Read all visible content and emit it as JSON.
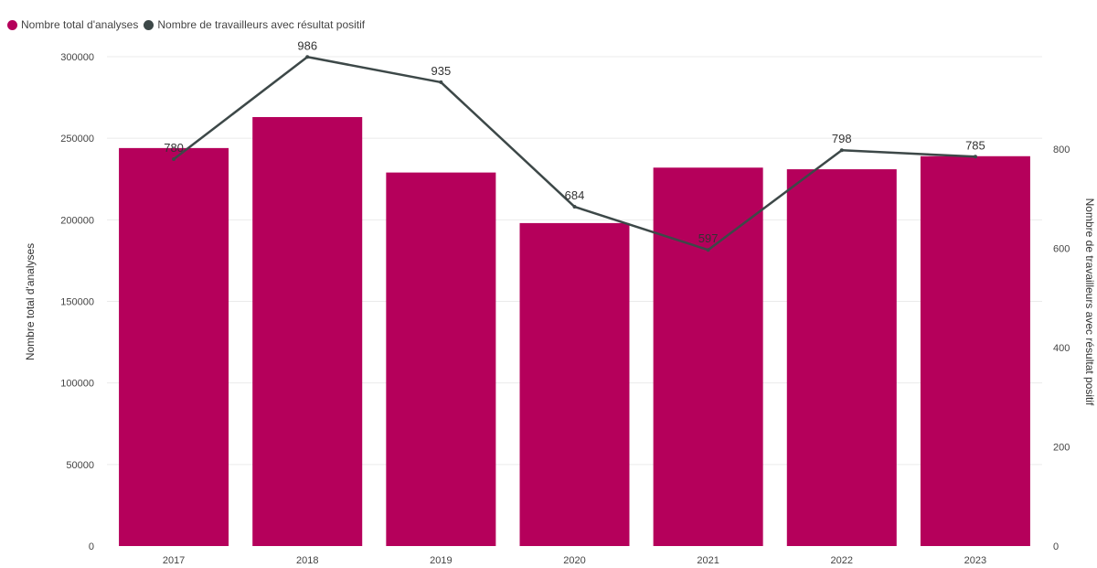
{
  "legend": {
    "bars_label": "Nombre total d'analyses",
    "line_label": "Nombre de travailleurs avec résultat positif"
  },
  "colors": {
    "bars": "#b5005b",
    "line": "#3d4848",
    "grid": "#ebebeb"
  },
  "chart_data": {
    "type": "bar",
    "categories": [
      "2017",
      "2018",
      "2019",
      "2020",
      "2021",
      "2022",
      "2023"
    ],
    "series": [
      {
        "name": "Nombre total d'analyses",
        "type": "bar",
        "axis": "left",
        "values": [
          244000,
          263000,
          229000,
          198000,
          232000,
          231000,
          239000
        ]
      },
      {
        "name": "Nombre de travailleurs avec résultat positif",
        "type": "line",
        "axis": "right",
        "values": [
          780,
          986,
          935,
          684,
          597,
          798,
          785
        ],
        "labels": [
          "780",
          "986",
          "935",
          "684",
          "597",
          "798",
          "785"
        ]
      }
    ],
    "y_left": {
      "label": "Nombre total d'analyses",
      "lim": [
        0,
        300000
      ],
      "ticks": [
        0,
        50000,
        100000,
        150000,
        200000,
        250000,
        300000
      ],
      "tick_labels": [
        "0",
        "50000",
        "100000",
        "150000",
        "200000",
        "250000",
        "300000"
      ]
    },
    "y_right": {
      "label": "Nombre de travailleurs avec résultat positif",
      "lim": [
        0,
        986.5
      ],
      "ticks": [
        0,
        200,
        400,
        600,
        800
      ],
      "tick_labels": [
        "0",
        "200",
        "400",
        "600",
        "800"
      ]
    },
    "grid": true,
    "legend_position": "top-left"
  }
}
